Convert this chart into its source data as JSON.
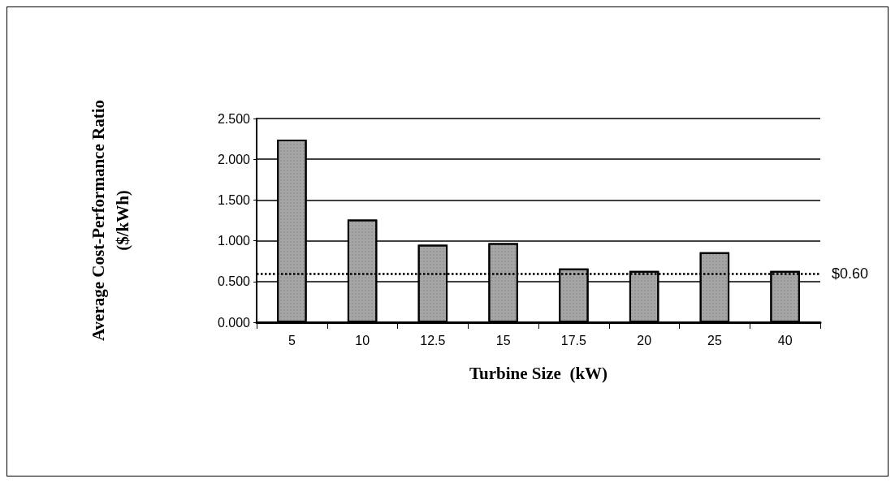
{
  "chart_data": {
    "type": "bar",
    "xlabel": "Turbine Size  (kW)",
    "ylabel": "Average Cost-Performance Ratio\n($/kWh)",
    "categories": [
      "5",
      "10",
      "12.5",
      "15",
      "17.5",
      "20",
      "25",
      "40"
    ],
    "values": [
      2.24,
      1.26,
      0.95,
      0.97,
      0.66,
      0.63,
      0.86,
      0.63
    ],
    "color": "#a6a6a6",
    "ylim": [
      0,
      2.5
    ],
    "yticks": [
      {
        "value": 0,
        "label": "0.000"
      },
      {
        "value": 0.5,
        "label": "0.500"
      },
      {
        "value": 1,
        "label": "1.000"
      },
      {
        "value": 1.5,
        "label": "1.500"
      },
      {
        "value": 2,
        "label": "2.000"
      },
      {
        "value": 2.5,
        "label": "2.500"
      }
    ],
    "grid": "y",
    "ref_lines": [
      {
        "axis": "y",
        "value": 0.6,
        "label": "$0.60",
        "color": "#000000",
        "line_style": "dotted"
      }
    ]
  }
}
